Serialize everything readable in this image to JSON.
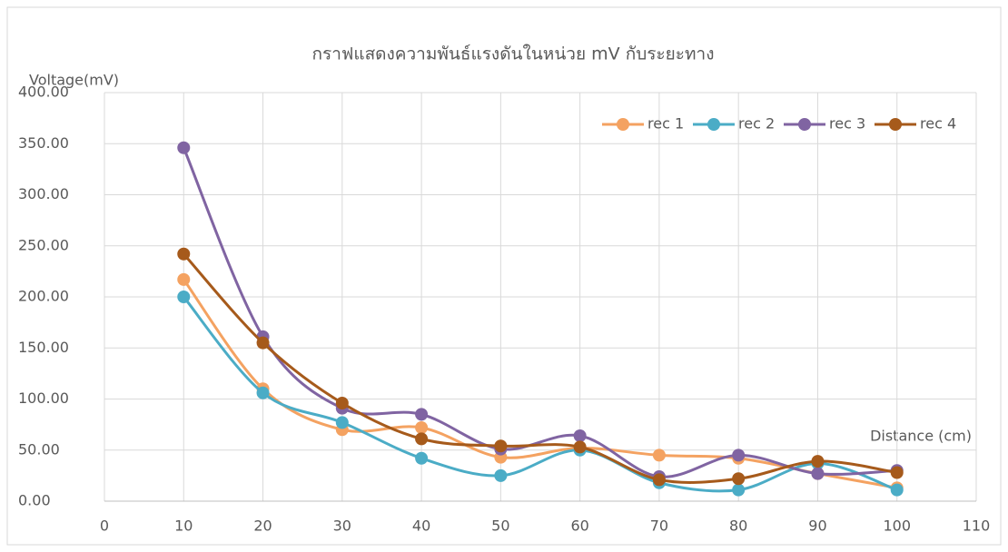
{
  "chart_data": {
    "type": "line",
    "title": "กราฟแสดงความพันธ์แรงดันในหน่วย mV กับระยะทาง",
    "y_label": "Voltage(mV)",
    "x_label": "Distance (cm)",
    "x": [
      10,
      20,
      30,
      40,
      50,
      60,
      70,
      80,
      90,
      100
    ],
    "series": [
      {
        "name": "rec 1",
        "color": "#F4A261",
        "values": [
          217,
          110,
          70,
          72,
          43,
          52,
          45,
          42,
          27,
          13
        ]
      },
      {
        "name": "rec 2",
        "color": "#4BACC6",
        "values": [
          200,
          106,
          77,
          42,
          25,
          50,
          18,
          11,
          37,
          11
        ]
      },
      {
        "name": "rec 3",
        "color": "#8064A2",
        "values": [
          346,
          161,
          91,
          85,
          51,
          64,
          24,
          45,
          27,
          30
        ]
      },
      {
        "name": "rec 4",
        "color": "#A65A1B",
        "values": [
          242,
          155,
          96,
          61,
          54,
          53,
          21,
          22,
          39,
          28
        ]
      }
    ],
    "xlim": [
      0,
      110
    ],
    "xticks": [
      0,
      10,
      20,
      30,
      40,
      50,
      60,
      70,
      80,
      90,
      100,
      110
    ],
    "ylim": [
      0,
      400
    ],
    "yticks": [
      {
        "value": 0,
        "label": "0.00"
      },
      {
        "value": 50,
        "label": "50.00"
      },
      {
        "value": 100,
        "label": "100.00"
      },
      {
        "value": 150,
        "label": "150.00"
      },
      {
        "value": 200,
        "label": "200.00"
      },
      {
        "value": 250,
        "label": "250.00"
      },
      {
        "value": 300,
        "label": "300.00"
      },
      {
        "value": 350,
        "label": "350.00"
      },
      {
        "value": 400,
        "label": "400.00"
      }
    ],
    "grid": true,
    "smooth": true,
    "legend": "top-right"
  }
}
